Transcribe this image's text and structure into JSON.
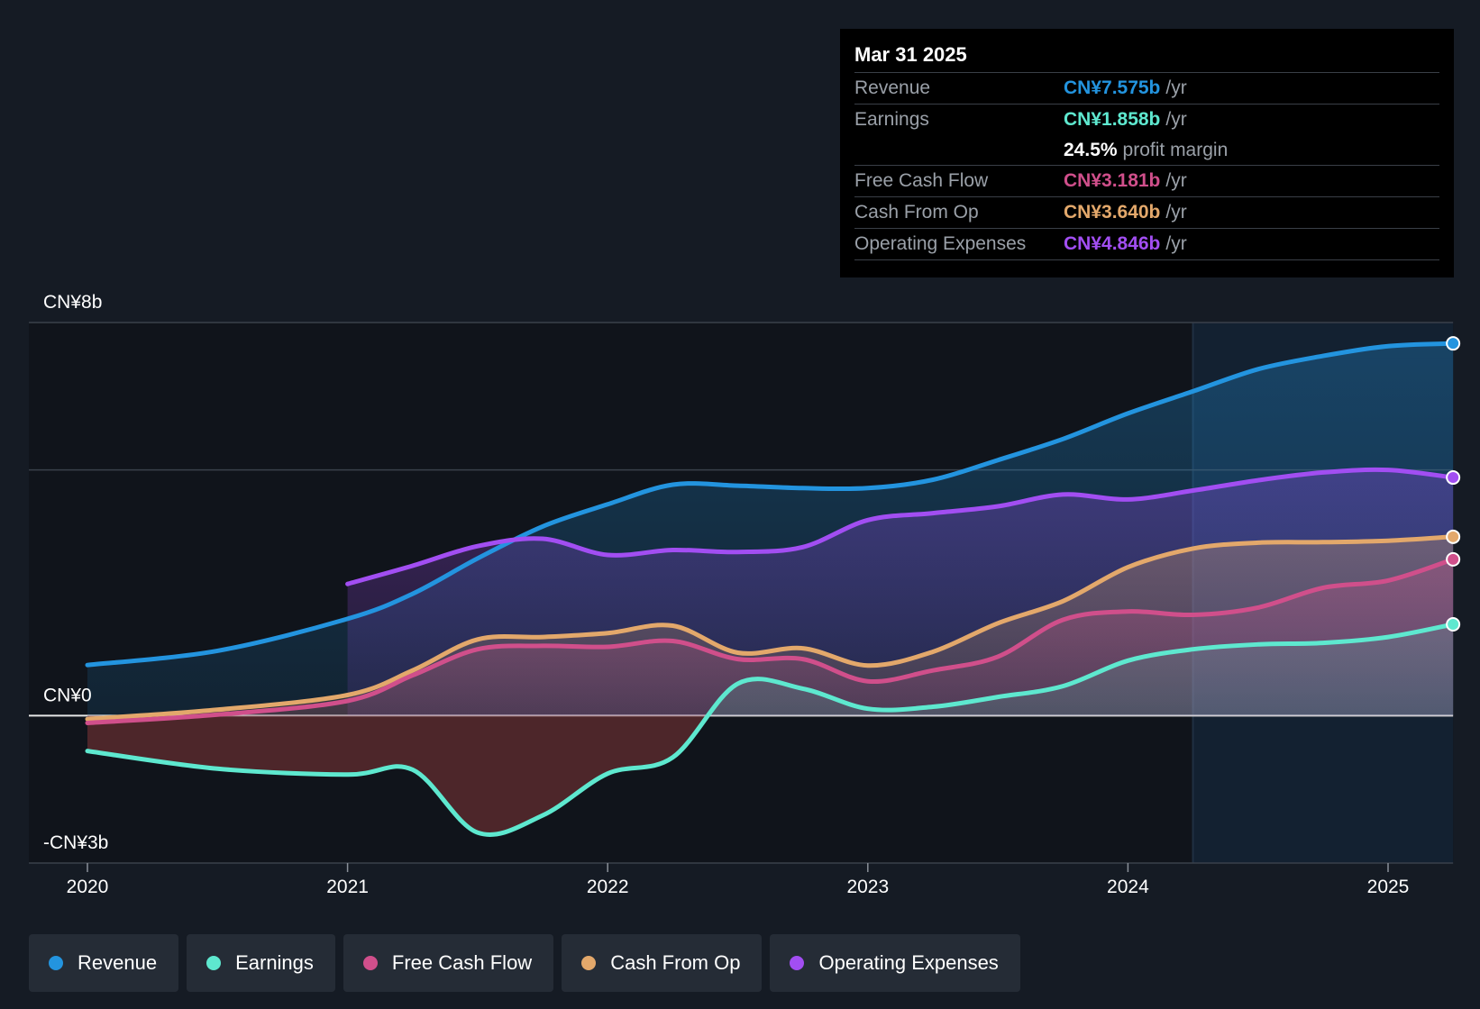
{
  "colors": {
    "revenue": "#2394df",
    "earnings": "#5ee8cf",
    "free_cash_flow": "#d04f8b",
    "cash_from_op": "#e3a86b",
    "operating_expenses": "#a24ef2"
  },
  "tooltip": {
    "date": "Mar 31 2025",
    "rows": [
      {
        "label": "Revenue",
        "value": "CN¥7.575b",
        "unit": "/yr"
      },
      {
        "label": "Earnings",
        "value": "CN¥1.858b",
        "unit": "/yr"
      },
      {
        "margin_value": "24.5%",
        "margin_label": "profit margin"
      },
      {
        "label": "Free Cash Flow",
        "value": "CN¥3.181b",
        "unit": "/yr"
      },
      {
        "label": "Cash From Op",
        "value": "CN¥3.640b",
        "unit": "/yr"
      },
      {
        "label": "Operating Expenses",
        "value": "CN¥4.846b",
        "unit": "/yr"
      }
    ]
  },
  "legend": [
    "Revenue",
    "Earnings",
    "Free Cash Flow",
    "Cash From Op",
    "Operating Expenses"
  ],
  "chart_data": {
    "type": "area",
    "title": "",
    "xlabel": "",
    "ylabel": "",
    "ylim": [
      -3,
      8
    ],
    "y_tick_labels": [
      {
        "value": 8,
        "label": "CN¥8b"
      },
      {
        "value": 0,
        "label": "CN¥0"
      },
      {
        "value": -3,
        "label": "-CN¥3b"
      }
    ],
    "x_ticks": [
      2020,
      2021,
      2022,
      2023,
      2024,
      2025
    ],
    "x_range": [
      2019.78,
      2025.25
    ],
    "forecast_start": 2024.25,
    "series": [
      {
        "name": "Revenue",
        "key": "revenue",
        "x": [
          2020.0,
          2020.5,
          2021.0,
          2021.25,
          2021.5,
          2021.75,
          2022.0,
          2022.25,
          2022.5,
          2022.75,
          2023.0,
          2023.25,
          2023.5,
          2023.75,
          2024.0,
          2024.25,
          2024.5,
          2024.75,
          2025.0,
          2025.25
        ],
        "values": [
          1.03,
          1.32,
          1.97,
          2.48,
          3.2,
          3.85,
          4.3,
          4.7,
          4.68,
          4.63,
          4.63,
          4.8,
          5.2,
          5.63,
          6.15,
          6.6,
          7.05,
          7.32,
          7.52,
          7.575
        ]
      },
      {
        "name": "Operating Expenses",
        "key": "operating_expenses",
        "x": [
          2021.0,
          2021.25,
          2021.5,
          2021.75,
          2022.0,
          2022.25,
          2022.5,
          2022.75,
          2023.0,
          2023.25,
          2023.5,
          2023.75,
          2024.0,
          2024.25,
          2024.5,
          2024.75,
          2025.0,
          2025.25
        ],
        "values": [
          2.68,
          3.05,
          3.45,
          3.6,
          3.27,
          3.37,
          3.33,
          3.43,
          3.98,
          4.12,
          4.26,
          4.5,
          4.4,
          4.58,
          4.79,
          4.95,
          5.0,
          4.846
        ]
      },
      {
        "name": "Cash From Op",
        "key": "cash_from_op",
        "x": [
          2020.0,
          2020.5,
          2021.0,
          2021.25,
          2021.5,
          2021.75,
          2022.0,
          2022.25,
          2022.5,
          2022.75,
          2023.0,
          2023.25,
          2023.5,
          2023.75,
          2024.0,
          2024.25,
          2024.5,
          2024.75,
          2025.0,
          2025.25
        ],
        "values": [
          -0.07,
          0.12,
          0.42,
          0.92,
          1.55,
          1.6,
          1.68,
          1.83,
          1.28,
          1.37,
          1.02,
          1.3,
          1.88,
          2.33,
          3.02,
          3.4,
          3.52,
          3.53,
          3.56,
          3.64
        ]
      },
      {
        "name": "Free Cash Flow",
        "key": "free_cash_flow",
        "x": [
          2020.0,
          2020.5,
          2021.0,
          2021.25,
          2021.5,
          2021.75,
          2022.0,
          2022.25,
          2022.5,
          2022.75,
          2023.0,
          2023.25,
          2023.5,
          2023.75,
          2024.0,
          2024.25,
          2024.5,
          2024.75,
          2025.0,
          2025.25
        ],
        "values": [
          -0.15,
          0.02,
          0.3,
          0.82,
          1.35,
          1.42,
          1.4,
          1.52,
          1.15,
          1.15,
          0.7,
          0.92,
          1.2,
          1.95,
          2.12,
          2.05,
          2.2,
          2.6,
          2.75,
          3.181
        ]
      },
      {
        "name": "Earnings",
        "key": "earnings",
        "x": [
          2020.0,
          2020.5,
          2021.0,
          2021.25,
          2021.5,
          2021.75,
          2022.0,
          2022.25,
          2022.5,
          2022.75,
          2023.0,
          2023.25,
          2023.5,
          2023.75,
          2024.0,
          2024.25,
          2024.5,
          2024.75,
          2025.0,
          2025.25
        ],
        "values": [
          -0.72,
          -1.08,
          -1.2,
          -1.1,
          -2.38,
          -2.03,
          -1.18,
          -0.85,
          0.65,
          0.55,
          0.14,
          0.18,
          0.38,
          0.6,
          1.12,
          1.35,
          1.45,
          1.48,
          1.6,
          1.858
        ]
      }
    ]
  }
}
